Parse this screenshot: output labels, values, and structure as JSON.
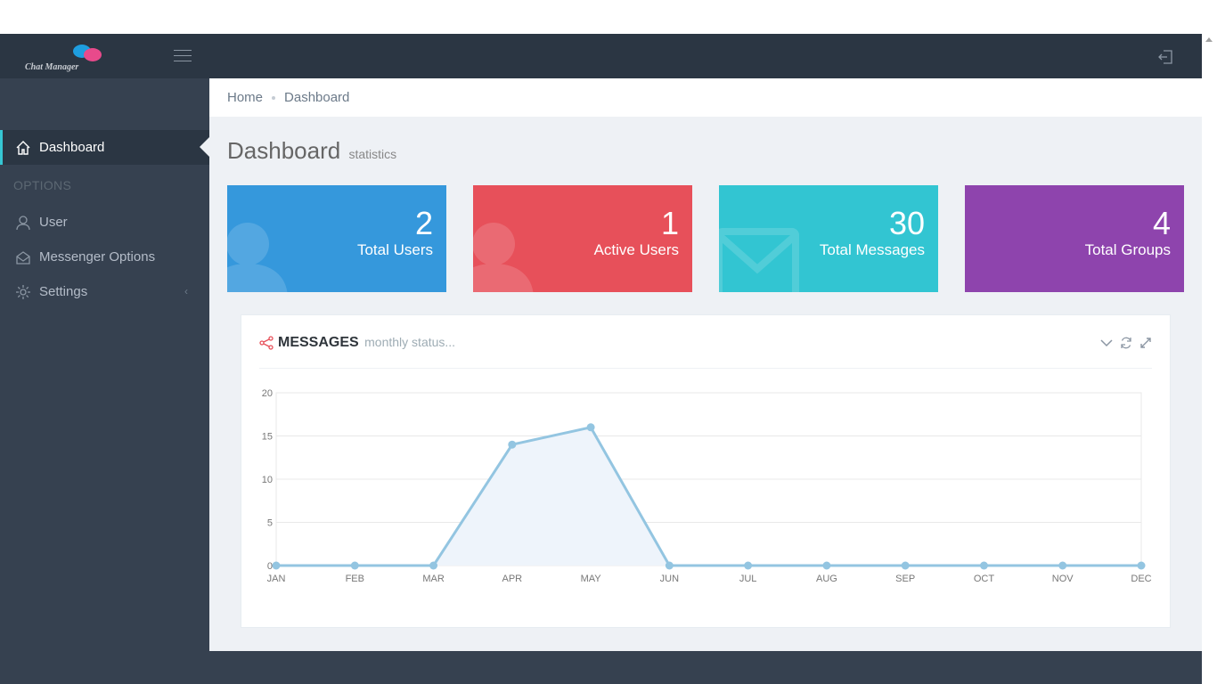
{
  "app": {
    "logo_text": "Chat Manager"
  },
  "header": {
    "menu_icon": "hamburger-icon",
    "logout_icon": "logout-icon"
  },
  "sidebar": {
    "items": [
      {
        "label": "Dashboard",
        "icon": "home-icon",
        "active": true
      },
      {
        "label": "User",
        "icon": "user-icon"
      },
      {
        "label": "Messenger Options",
        "icon": "envelope-open-icon"
      },
      {
        "label": "Settings",
        "icon": "gear-icon"
      }
    ],
    "heading": "OPTIONS"
  },
  "breadcrumb": {
    "home": "Home",
    "current": "Dashboard"
  },
  "page": {
    "title": "Dashboard",
    "subtitle": "statistics"
  },
  "tiles": [
    {
      "value": "2",
      "label": "Total Users",
      "color": "#3598dc",
      "icon": "user-icon"
    },
    {
      "value": "1",
      "label": "Active Users",
      "color": "#e7505a",
      "icon": "user-icon"
    },
    {
      "value": "30",
      "label": "Total Messages",
      "color": "#32c5d2",
      "icon": "envelope-icon"
    },
    {
      "value": "4",
      "label": "Total Groups",
      "color": "#8e44ad",
      "icon": "group-icon"
    }
  ],
  "portlet": {
    "title": "MESSAGES",
    "subtitle": "monthly status...",
    "icon": "share-icon"
  },
  "chart_data": {
    "type": "area",
    "categories": [
      "JAN",
      "FEB",
      "MAR",
      "APR",
      "MAY",
      "JUN",
      "JUL",
      "AUG",
      "SEP",
      "OCT",
      "NOV",
      "DEC"
    ],
    "values": [
      0,
      0,
      0,
      14,
      16,
      0,
      0,
      0,
      0,
      0,
      0,
      0
    ],
    "ylim": [
      0,
      20
    ],
    "yticks": [
      0,
      5,
      10,
      15,
      20
    ],
    "grid": true,
    "line_color": "#93c5e1",
    "fill_color": "#eef4fb"
  }
}
